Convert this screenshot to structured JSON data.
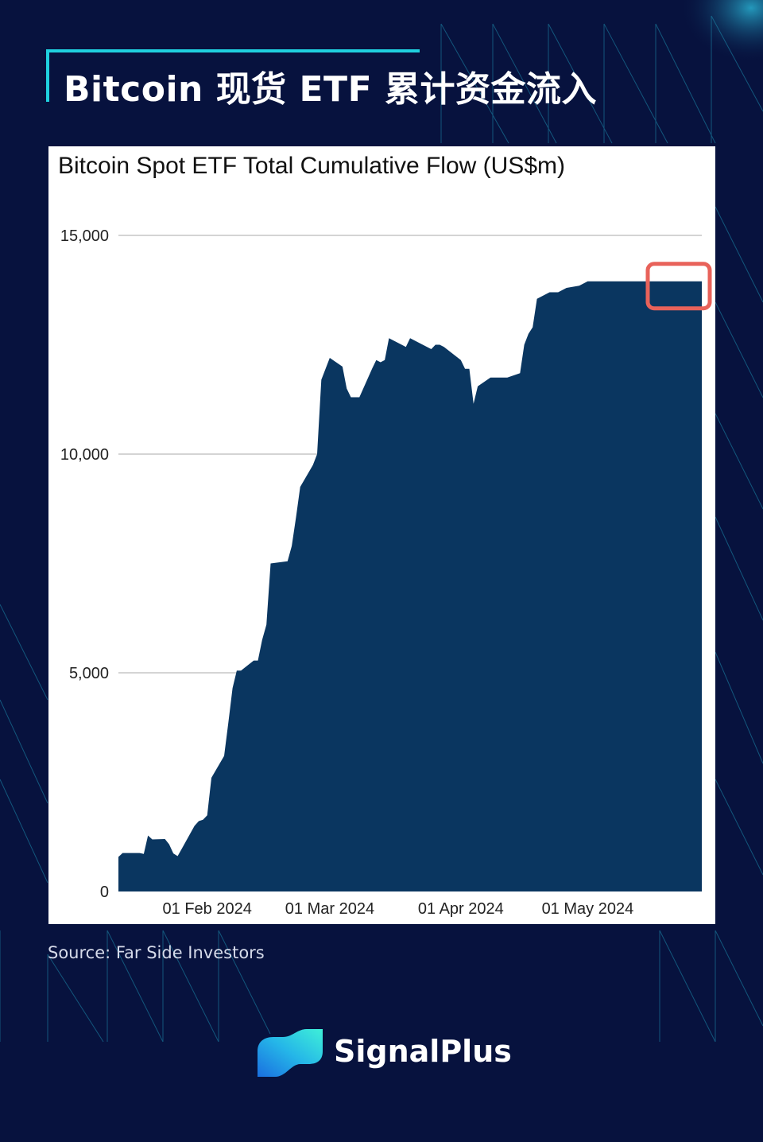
{
  "page": {
    "title": "Bitcoin 现货 ETF 累计资金流入",
    "source": "Source: Far Side Investors",
    "brand": "SignalPlus",
    "colors": {
      "background": "#07123e",
      "accent": "#1fd0df",
      "area_fill": "#0a3660",
      "highlight": "#e8625a"
    }
  },
  "chart_data": {
    "type": "area",
    "title": "Bitcoin Spot ETF Total Cumulative Flow (US$m)",
    "xlabel": "",
    "ylabel": "",
    "ylim": [
      0,
      15000
    ],
    "yticks": [
      0,
      5000,
      10000,
      15000
    ],
    "ytick_labels": [
      "0",
      "5,000",
      "10,000",
      "15,000"
    ],
    "xtick_labels": [
      "01 Feb 2024",
      "01 Mar 2024",
      "01 Apr 2024",
      "01 May 2024"
    ],
    "xtick_dates": [
      "2024-02-01",
      "2024-03-01",
      "2024-04-01",
      "2024-05-01"
    ],
    "grid": true,
    "annotation": "highlight box on latest values",
    "series": [
      {
        "x": [
          "2024-01-11",
          "2024-01-12",
          "2024-01-16",
          "2024-01-17",
          "2024-01-18",
          "2024-01-19",
          "2024-01-22",
          "2024-01-23",
          "2024-01-24",
          "2024-01-25",
          "2024-01-26",
          "2024-01-29",
          "2024-01-30",
          "2024-01-31",
          "2024-02-01",
          "2024-02-02",
          "2024-02-05",
          "2024-02-06",
          "2024-02-07",
          "2024-02-08",
          "2024-02-09",
          "2024-02-12",
          "2024-02-13",
          "2024-02-14",
          "2024-02-15",
          "2024-02-16",
          "2024-02-20",
          "2024-02-21",
          "2024-02-22",
          "2024-02-23",
          "2024-02-26",
          "2024-02-27",
          "2024-02-28",
          "2024-02-29",
          "2024-03-01",
          "2024-03-04",
          "2024-03-05",
          "2024-03-06",
          "2024-03-07",
          "2024-03-08",
          "2024-03-11",
          "2024-03-12",
          "2024-03-13",
          "2024-03-14",
          "2024-03-15",
          "2024-03-18",
          "2024-03-19",
          "2024-03-20",
          "2024-03-21",
          "2024-03-22",
          "2024-03-25",
          "2024-03-26",
          "2024-03-27",
          "2024-03-28",
          "2024-04-01",
          "2024-04-02",
          "2024-04-03",
          "2024-04-04",
          "2024-04-05",
          "2024-04-08",
          "2024-04-09",
          "2024-04-10",
          "2024-04-11",
          "2024-04-12",
          "2024-04-15",
          "2024-04-16",
          "2024-04-17",
          "2024-04-18",
          "2024-04-19",
          "2024-04-22",
          "2024-04-23",
          "2024-04-24",
          "2024-04-25",
          "2024-04-26",
          "2024-04-29",
          "2024-04-30",
          "2024-05-01",
          "2024-05-02",
          "2024-05-03",
          "2024-05-06",
          "2024-05-07",
          "2024-05-08",
          "2024-05-09",
          "2024-05-10",
          "2024-05-13",
          "2024-05-14",
          "2024-05-15",
          "2024-05-16",
          "2024-05-17",
          "2024-05-20",
          "2024-05-21",
          "2024-05-22",
          "2024-05-23",
          "2024-05-24",
          "2024-05-28"
        ],
        "values": [
          790,
          880,
          880,
          860,
          1280,
          1190,
          1200,
          1080,
          870,
          810,
          980,
          1500,
          1610,
          1640,
          1740,
          2600,
          3100,
          3860,
          4650,
          5050,
          5050,
          5280,
          5280,
          5750,
          6100,
          7500,
          7550,
          7900,
          8550,
          9250,
          9750,
          10000,
          11700,
          11950,
          12200,
          12000,
          11500,
          11300,
          11300,
          11300,
          11950,
          12150,
          12100,
          12150,
          12650,
          12500,
          12450,
          12650,
          12600,
          12550,
          12400,
          12500,
          12500,
          12450,
          12150,
          11950,
          11950,
          11150,
          11550,
          11750,
          11750,
          11750,
          11750,
          11750,
          11850,
          12500,
          12750,
          12900,
          13550,
          13700,
          13700,
          13700,
          13750,
          13800,
          13850,
          13900,
          13950,
          13950,
          13950,
          13950,
          13950,
          13950,
          13950,
          13950,
          13950,
          13950,
          13950,
          13950,
          13950,
          13950,
          13950,
          13950,
          13950,
          13950,
          13950
        ]
      }
    ]
  }
}
